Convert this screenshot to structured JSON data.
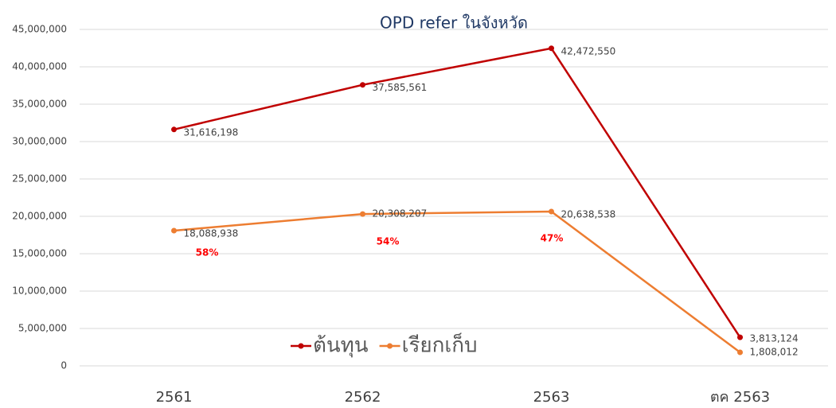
{
  "chart_data": {
    "type": "line",
    "title": "OPD refer ในจังหวัด",
    "categories": [
      "2561",
      "2562",
      "2563",
      "ตค 2563"
    ],
    "series": [
      {
        "name": "ต้นทุน",
        "color": "#c00000",
        "values": [
          31616198,
          37585561,
          42472550,
          3813124
        ],
        "value_labels": [
          "31,616,198",
          "37,585,561",
          "42,472,550",
          "3,813,124"
        ]
      },
      {
        "name": "เรียกเก็บ",
        "color": "#ed7d31",
        "values": [
          18088938,
          20308207,
          20638538,
          1808012
        ],
        "value_labels": [
          "18,088,938",
          "20,308,207",
          "20,638,538",
          "1,808,012"
        ]
      }
    ],
    "annotations": [
      "58%",
      "54%",
      "47%"
    ],
    "ylim": [
      0,
      45000000
    ],
    "yticks": [
      0,
      {
        "value": 5000000,
        "label": "5,000,000"
      },
      {
        "value": 10000000,
        "label": "10,000,000"
      },
      {
        "value": 15000000,
        "label": "15,000,000"
      },
      {
        "value": 20000000,
        "label": "20,000,000"
      },
      {
        "value": 25000000,
        "label": "25,000,000"
      },
      {
        "value": 30000000,
        "label": "30,000,000"
      },
      {
        "value": 35000000,
        "label": "35,000,000"
      },
      {
        "value": 40000000,
        "label": "40,000,000"
      },
      {
        "value": 45000000,
        "label": "45,000,000"
      }
    ],
    "grid": true,
    "legend": "center"
  }
}
